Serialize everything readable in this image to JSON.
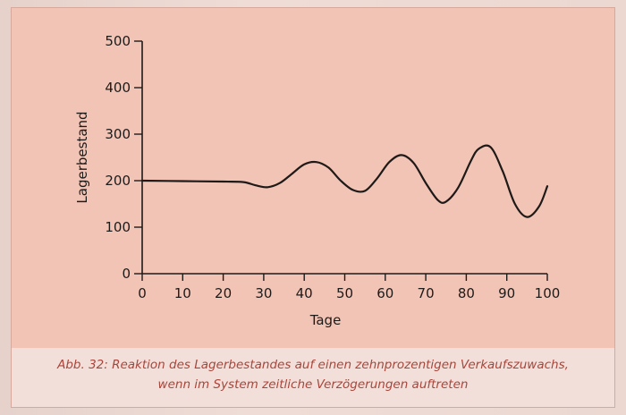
{
  "chart_data": {
    "type": "line",
    "xlabel": "Tage",
    "ylabel": "Lagerbestand",
    "xlim": [
      0,
      100
    ],
    "ylim": [
      0,
      500
    ],
    "x_ticks": [
      0,
      10,
      20,
      30,
      40,
      50,
      60,
      70,
      80,
      90,
      100
    ],
    "y_ticks": [
      0,
      100,
      200,
      300,
      400,
      500
    ],
    "grid": false,
    "series": [
      {
        "color": "#1e1a18",
        "x": [
          0,
          10,
          20,
          25,
          28,
          31,
          34,
          37,
          40,
          43,
          46,
          49,
          52,
          55,
          58,
          61,
          64,
          67,
          70,
          73,
          75,
          78,
          81,
          83,
          86,
          89,
          92,
          95,
          98,
          100
        ],
        "y": [
          200,
          199,
          198,
          197,
          190,
          186,
          195,
          215,
          235,
          240,
          228,
          200,
          180,
          178,
          205,
          240,
          255,
          238,
          195,
          158,
          155,
          185,
          240,
          268,
          272,
          220,
          150,
          122,
          145,
          188
        ]
      }
    ]
  },
  "caption": {
    "line1": "Abb. 32: Reaktion des Lagerbestandes auf einen zehnprozentigen Verkaufszuwachs,",
    "line2": "wenn im System zeitliche Verzögerungen auftreten"
  }
}
